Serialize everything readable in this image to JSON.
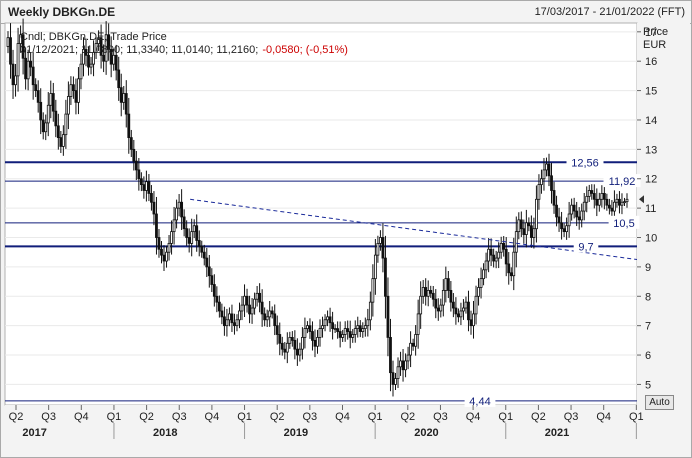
{
  "header": {
    "title": "Weekly DBKGn.DE",
    "date_range": "17/03/2017 - 21/01/2022 (FFT)"
  },
  "legend": {
    "line1": "Cndl; DBKGn.DE; Trade Price",
    "line2_values": "31/12/2021; 11,0800; 11,3340; 11,0140; 11,2160;",
    "line2_change": "-0,0580; (-0,51%)"
  },
  "axis": {
    "price_title": "Price",
    "currency": "EUR",
    "auto_label": "Auto"
  },
  "colors": {
    "hline": "#101e7a",
    "trendline": "#1a2a9a",
    "candle": "#111111",
    "negative": "#cc0000"
  },
  "chart_data": {
    "type": "candlestick",
    "title": "Weekly DBKGn.DE",
    "ylabel": "Price EUR",
    "ylim": [
      4.3,
      17.3
    ],
    "y_ticks": [
      5,
      6,
      7,
      8,
      9,
      10,
      11,
      12,
      13,
      14,
      15,
      16,
      17
    ],
    "x_quarter_ticks": [
      "Q2",
      "Q3",
      "Q4",
      "Q1",
      "Q2",
      "Q3",
      "Q4",
      "Q1",
      "Q2",
      "Q3",
      "Q4",
      "Q1",
      "Q2",
      "Q3",
      "Q4",
      "Q1",
      "Q2",
      "Q3",
      "Q4",
      "Q1"
    ],
    "x_year_labels": [
      "2017",
      "2018",
      "2019",
      "2020",
      "2021"
    ],
    "horizontal_lines": [
      {
        "value": 12.56,
        "label": "12,56",
        "bold": true
      },
      {
        "value": 11.92,
        "label": "11,92",
        "bold": false
      },
      {
        "value": 10.5,
        "label": "10,5",
        "bold": false
      },
      {
        "value": 9.7,
        "label": "9,7",
        "bold": true
      },
      {
        "value": 4.44,
        "label": "4,44",
        "bold": false
      }
    ],
    "trendline": {
      "start": {
        "date": "2018-08",
        "value": 11.3
      },
      "end": {
        "date": "2022-01",
        "value": 9.25
      }
    },
    "weekly_closes_approx": [
      {
        "period": "2017 Q2",
        "values": [
          16.8,
          15.9,
          15.2,
          15.5,
          16.6,
          16.9,
          16.1,
          15.4,
          16.0,
          15.8,
          15.2,
          15.0,
          14.6
        ]
      },
      {
        "period": "2017 Q3",
        "values": [
          14.0,
          13.6,
          13.9,
          14.5,
          14.9,
          14.3,
          13.8,
          13.4,
          13.1,
          13.5,
          14.2,
          14.8,
          15.2
        ]
      },
      {
        "period": "2017 Q4",
        "values": [
          15.0,
          14.6,
          15.4,
          15.9,
          16.4,
          16.2,
          15.8,
          15.9,
          16.3,
          16.6,
          16.8,
          16.2,
          16.0
        ]
      },
      {
        "period": "2018 Q1",
        "values": [
          16.9,
          16.4,
          15.9,
          16.2,
          15.7,
          15.1,
          14.6,
          14.9,
          14.2,
          13.4,
          13.0,
          12.6,
          12.3
        ]
      },
      {
        "period": "2018 Q2",
        "values": [
          12.0,
          11.8,
          11.6,
          11.9,
          11.5,
          11.2,
          10.8,
          10.0,
          9.6,
          9.4,
          9.2,
          9.5,
          9.8
        ]
      },
      {
        "period": "2018 Q3",
        "values": [
          10.2,
          10.6,
          11.0,
          11.2,
          10.7,
          10.3,
          10.0,
          9.8,
          10.2,
          10.4,
          9.9,
          9.7,
          9.5
        ]
      },
      {
        "period": "2018 Q4",
        "values": [
          9.3,
          9.0,
          8.7,
          8.4,
          8.0,
          7.8,
          7.5,
          7.3,
          7.0,
          7.2,
          7.4,
          7.1,
          7.0
        ]
      },
      {
        "period": "2019 Q1",
        "values": [
          7.2,
          7.5,
          7.7,
          8.0,
          7.7,
          7.4,
          7.6,
          7.9,
          8.1,
          7.8,
          7.4,
          7.2,
          7.3
        ]
      },
      {
        "period": "2019 Q2",
        "values": [
          7.5,
          7.4,
          7.0,
          6.7,
          6.4,
          6.2,
          6.1,
          6.4,
          6.6,
          6.5,
          6.2,
          6.0,
          6.2
        ]
      },
      {
        "period": "2019 Q3",
        "values": [
          6.6,
          6.9,
          7.0,
          6.8,
          6.5,
          6.3,
          6.6,
          6.9,
          7.0,
          7.2,
          7.3,
          7.1,
          6.9
        ]
      },
      {
        "period": "2019 Q4",
        "values": [
          6.9,
          6.8,
          6.6,
          6.7,
          6.9,
          6.8,
          6.6,
          6.7,
          6.9,
          7.0,
          6.8,
          6.9,
          7.0
        ]
      },
      {
        "period": "2020 Q1",
        "values": [
          7.2,
          7.8,
          8.6,
          9.4,
          9.8,
          10.0,
          9.3,
          8.0,
          6.6,
          5.4,
          5.0,
          5.2,
          5.6
        ]
      },
      {
        "period": "2020 Q2",
        "values": [
          5.8,
          5.5,
          5.8,
          6.0,
          6.4,
          6.3,
          6.7,
          7.4,
          8.0,
          8.3,
          8.0,
          8.2,
          8.1
        ]
      },
      {
        "period": "2020 Q3",
        "values": [
          7.9,
          7.6,
          7.5,
          7.7,
          8.2,
          8.6,
          8.2,
          7.8,
          7.6,
          7.4,
          7.3,
          7.5,
          7.6
        ]
      },
      {
        "period": "2020 Q4",
        "values": [
          7.8,
          7.2,
          7.0,
          7.4,
          8.0,
          8.3,
          8.6,
          8.9,
          9.2,
          9.6,
          9.4,
          9.2,
          9.3
        ]
      },
      {
        "period": "2021 Q1",
        "values": [
          9.5,
          9.8,
          9.6,
          9.1,
          8.8,
          8.7,
          9.5,
          10.2,
          10.6,
          10.3,
          10.1,
          10.5,
          10.4
        ]
      },
      {
        "period": "2021 Q2",
        "values": [
          10.0,
          10.3,
          11.3,
          11.8,
          12.0,
          12.3,
          12.5,
          12.1,
          11.6,
          11.1,
          10.7,
          10.5,
          10.3
        ]
      },
      {
        "period": "2021 Q3",
        "values": [
          10.2,
          10.4,
          10.8,
          11.1,
          10.9,
          10.7,
          10.6,
          10.9,
          11.2,
          11.4,
          11.6,
          11.5,
          11.3
        ]
      },
      {
        "period": "2021 Q4",
        "values": [
          11.1,
          11.3,
          11.5,
          11.3,
          11.1,
          11.0,
          10.9,
          11.2,
          11.3,
          11.1,
          11.2,
          11.22,
          11.3
        ]
      }
    ]
  }
}
